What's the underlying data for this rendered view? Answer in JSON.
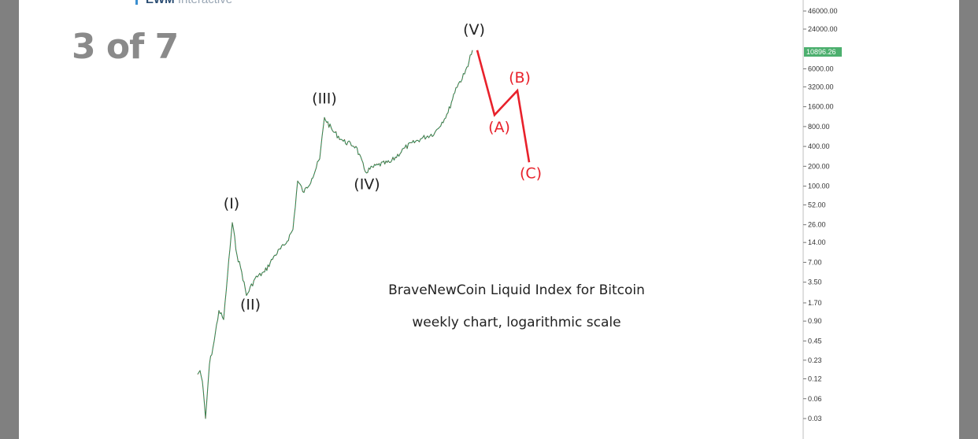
{
  "slide": {
    "counter": "3 of 7",
    "logo_brand": "EWM",
    "logo_text": "Interactive"
  },
  "chart_data": {
    "type": "line",
    "scale": "log",
    "annotation_lines": [
      "BraveNewCoin Liquid Index for Bitcoin",
      "weekly chart, logarithmic scale"
    ],
    "y_ticks": [
      "46000.00",
      "24000.00",
      "6000.00",
      "3200.00",
      "1600.00",
      "800.00",
      "400.00",
      "200.00",
      "100.00",
      "52.00",
      "26.00",
      "14.00",
      "7.00",
      "3.50",
      "1.70",
      "0.90",
      "0.45",
      "0.23",
      "0.12",
      "0.06",
      "0.03"
    ],
    "last_price": "10896.26",
    "last_price_color": "#4caf6e",
    "wave_color_impulse": "#222222",
    "wave_color_correction": "#e8212b",
    "impulse_waves": [
      {
        "label": "(I)",
        "value": 28
      },
      {
        "label": "(II)",
        "value": 2.2
      },
      {
        "label": "(III)",
        "value": 1100
      },
      {
        "label": "(IV)",
        "value": 165
      },
      {
        "label": "(V)",
        "value": 11500
      }
    ],
    "corrective_waves": [
      {
        "label": "(A)",
        "value": 1200
      },
      {
        "label": "(B)",
        "value": 2800
      },
      {
        "label": "(C)",
        "value": 230
      }
    ]
  }
}
